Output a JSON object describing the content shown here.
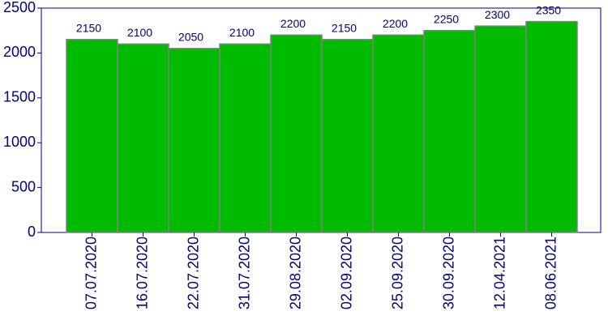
{
  "chart_data": {
    "type": "bar",
    "categories": [
      "07.07.2020",
      "16.07.2020",
      "22.07.2020",
      "31.07.2020",
      "29.08.2020",
      "02.09.2020",
      "25.09.2020",
      "30.09.2020",
      "12.04.2021",
      "08.06.2021"
    ],
    "values": [
      2150,
      2100,
      2050,
      2100,
      2200,
      2150,
      2200,
      2250,
      2300,
      2350
    ],
    "color": "#00bb00",
    "ylim": [
      0,
      2500
    ],
    "yticks": [
      0,
      500,
      1000,
      1500,
      2000,
      2500
    ]
  }
}
